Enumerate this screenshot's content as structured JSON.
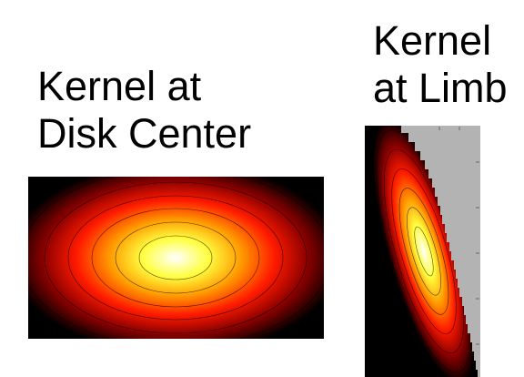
{
  "panels": [
    {
      "title": "Kernel at\nDisk Center"
    },
    {
      "title": "Kernel\nat Limb"
    }
  ],
  "colors": {
    "background": "#ffffff",
    "mask": "#b3b3b3",
    "contour": "#000000",
    "colormap": [
      "#000000",
      "#990000",
      "#ff0000",
      "#ff8c00",
      "#ffff40",
      "#ffffff"
    ]
  }
}
